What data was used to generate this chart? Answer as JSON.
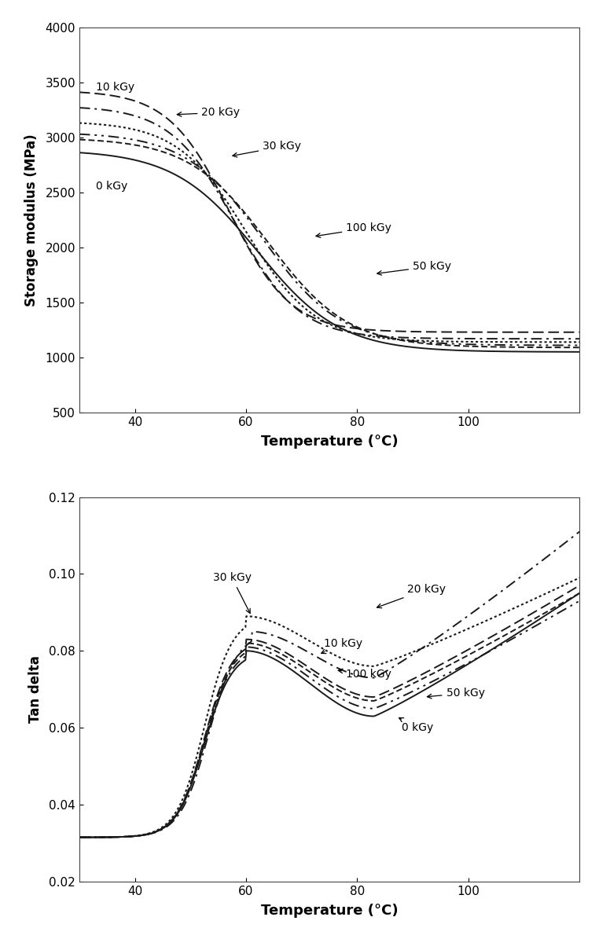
{
  "temp_range": [
    30,
    120
  ],
  "storage_ylim": [
    500,
    4000
  ],
  "tandelta_ylim": [
    0.02,
    0.12
  ],
  "storage_yticks": [
    500,
    1000,
    1500,
    2000,
    2500,
    3000,
    3500,
    4000
  ],
  "tandelta_yticks": [
    0.02,
    0.04,
    0.06,
    0.08,
    0.1,
    0.12
  ],
  "xticks": [
    40,
    60,
    80,
    100
  ],
  "xlabel": "Temperature (°C)",
  "ylabel_storage": "Storage modulus (MPa)",
  "ylabel_tandelta": "Tan delta",
  "storage_params": {
    "0 kGy": [
      1050,
      2890,
      62,
      7.5
    ],
    "10 kGy": [
      1230,
      3430,
      57,
      5.5
    ],
    "20 kGy": [
      1170,
      3290,
      58,
      5.8
    ],
    "30 kGy": [
      1140,
      3150,
      60,
      6.2
    ],
    "50 kGy": [
      1110,
      3050,
      63,
      7.0
    ],
    "100 kGy": [
      1090,
      3000,
      64,
      7.2
    ]
  },
  "tandelta_params": {
    "0 kGy": [
      0.0315,
      0.08,
      60,
      0.063,
      83,
      0.095,
      120
    ],
    "10 kGy": [
      0.0315,
      0.083,
      60,
      0.068,
      83,
      0.097,
      120
    ],
    "20 kGy": [
      0.0315,
      0.085,
      61,
      0.073,
      83,
      0.111,
      120
    ],
    "30 kGy": [
      0.0315,
      0.089,
      60,
      0.076,
      83,
      0.099,
      120
    ],
    "50 kGy": [
      0.0315,
      0.081,
      60,
      0.065,
      83,
      0.093,
      120
    ],
    "100 kGy": [
      0.0315,
      0.082,
      60,
      0.067,
      83,
      0.095,
      120
    ]
  },
  "linestyles": {
    "0 kGy": {
      "lw": 1.3,
      "ls": "solid"
    },
    "10 kGy": {
      "lw": 1.3,
      "ls": "dashed"
    },
    "20 kGy": {
      "lw": 1.3,
      "ls": "dashdot"
    },
    "30 kGy": {
      "lw": 1.5,
      "ls": "dotted"
    },
    "50 kGy": {
      "lw": 1.3,
      "ls": "dashdotdotted"
    },
    "100 kGy": {
      "lw": 1.3,
      "ls": "dashdot"
    }
  },
  "color": "#1a1a1a",
  "series_order": [
    "0 kGy",
    "10 kGy",
    "20 kGy",
    "30 kGy",
    "50 kGy",
    "100 kGy"
  ]
}
